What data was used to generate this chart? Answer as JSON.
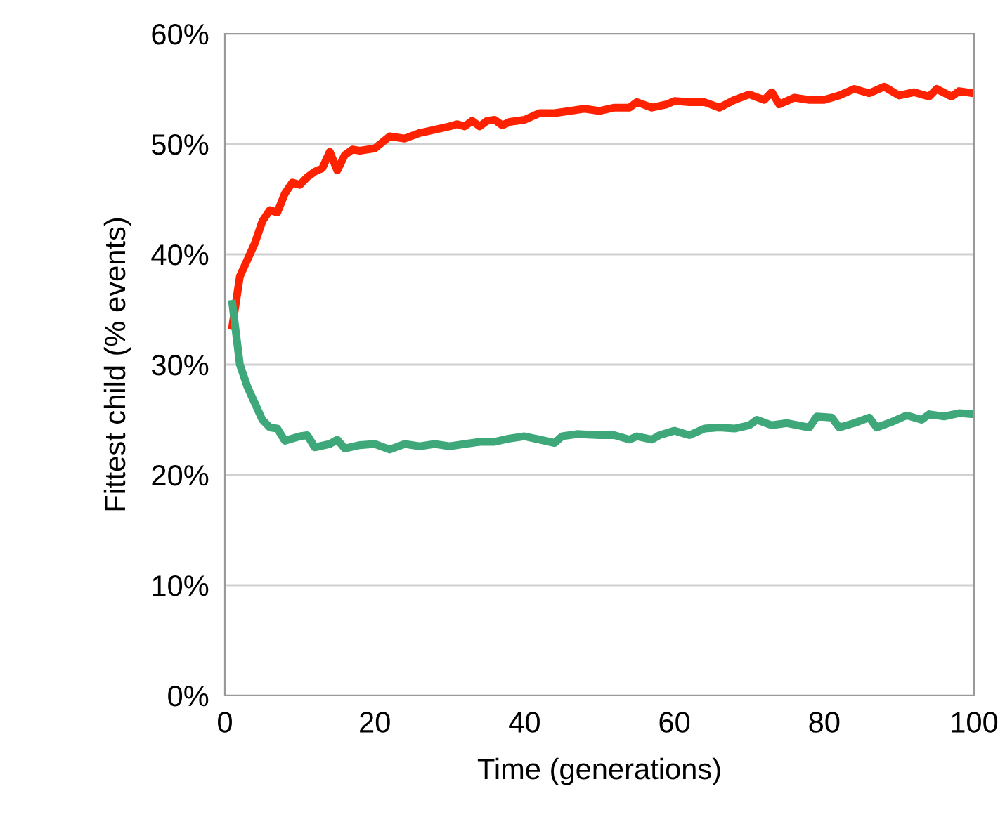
{
  "chart_data": {
    "type": "line",
    "xlabel": "Time (generations)",
    "ylabel": "Fittest child (% events)",
    "xlim": [
      0,
      100
    ],
    "xticks": [
      0,
      20,
      40,
      60,
      80,
      100
    ],
    "ylim": [
      0,
      60
    ],
    "yticks": [
      {
        "value": 0,
        "label": "0%"
      },
      {
        "value": 10,
        "label": "10%"
      },
      {
        "value": 20,
        "label": "20%"
      },
      {
        "value": 30,
        "label": "30%"
      },
      {
        "value": 40,
        "label": "40%"
      },
      {
        "value": 50,
        "label": "50%"
      },
      {
        "value": 60,
        "label": "60%"
      }
    ],
    "grid": "y",
    "marker": "none",
    "line_style": "solid",
    "series": [
      {
        "color": "#ff2200",
        "x": [
          1,
          2,
          3,
          4,
          5,
          6,
          7,
          8,
          9,
          10,
          11,
          12,
          13,
          14,
          15,
          16,
          17,
          18,
          20,
          22,
          24,
          26,
          28,
          30,
          31,
          32,
          33,
          34,
          35,
          36,
          37,
          38,
          40,
          42,
          44,
          46,
          48,
          50,
          52,
          54,
          55,
          57,
          59,
          60,
          62,
          64,
          66,
          68,
          70,
          72,
          73,
          74,
          76,
          78,
          80,
          82,
          84,
          86,
          88,
          90,
          92,
          94,
          95,
          97,
          98,
          100
        ],
        "values": [
          33.5,
          38,
          39.5,
          41,
          43,
          44,
          43.8,
          45.5,
          46.5,
          46.3,
          47,
          47.5,
          47.8,
          49.3,
          47.6,
          49,
          49.5,
          49.4,
          49.6,
          50.7,
          50.5,
          51,
          51.3,
          51.6,
          51.8,
          51.6,
          52.1,
          51.6,
          52.1,
          52.2,
          51.7,
          52,
          52.2,
          52.8,
          52.8,
          53,
          53.2,
          53,
          53.3,
          53.3,
          53.8,
          53.3,
          53.6,
          53.9,
          53.8,
          53.8,
          53.3,
          54,
          54.5,
          54,
          54.7,
          53.6,
          54.2,
          54,
          54,
          54.4,
          55,
          54.6,
          55.2,
          54.4,
          54.7,
          54.3,
          55,
          54.3,
          54.8,
          54.6
        ]
      },
      {
        "color": "#3ea87a",
        "x": [
          1,
          2,
          3,
          4,
          5,
          6,
          7,
          8,
          10,
          11,
          12,
          14,
          15,
          16,
          18,
          20,
          22,
          24,
          26,
          28,
          30,
          32,
          34,
          36,
          38,
          40,
          42,
          44,
          45,
          47,
          50,
          52,
          54,
          55,
          57,
          58,
          60,
          62,
          64,
          66,
          68,
          70,
          71,
          73,
          75,
          78,
          79,
          81,
          82,
          84,
          86,
          87,
          89,
          91,
          93,
          94,
          96,
          98,
          100
        ],
        "values": [
          35.5,
          30,
          28,
          26.5,
          25,
          24.3,
          24.2,
          23.1,
          23.5,
          23.6,
          22.5,
          22.8,
          23.2,
          22.4,
          22.7,
          22.8,
          22.3,
          22.8,
          22.6,
          22.8,
          22.6,
          22.8,
          23,
          23,
          23.3,
          23.5,
          23.2,
          22.9,
          23.5,
          23.7,
          23.6,
          23.6,
          23.2,
          23.5,
          23.2,
          23.6,
          24,
          23.6,
          24.2,
          24.3,
          24.2,
          24.5,
          25,
          24.5,
          24.7,
          24.3,
          25.3,
          25.2,
          24.3,
          24.7,
          25.2,
          24.3,
          24.8,
          25.4,
          25,
          25.5,
          25.3,
          25.6,
          25.5
        ]
      }
    ]
  }
}
